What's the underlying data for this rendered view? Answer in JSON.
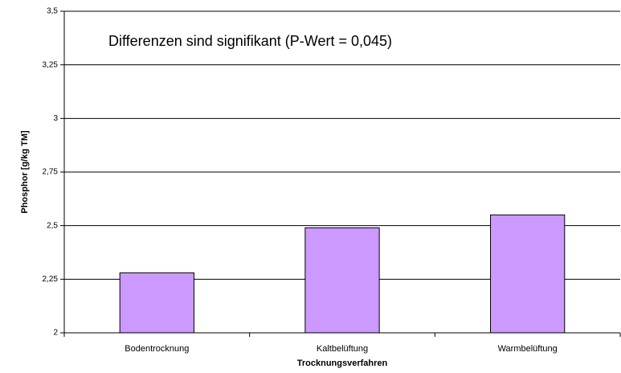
{
  "chart_data": {
    "type": "bar",
    "annotation": "Differenzen sind signifikant (P-Wert = 0,045)",
    "x_label": "Trocknungsverfahren",
    "y_label": "Phosphor [g/kg TM]",
    "categories": [
      "Bodentrocknung",
      "Kaltbelüftung",
      "Warmbelüftung"
    ],
    "values": [
      2.28,
      2.49,
      2.55
    ],
    "color": "#cc99ff",
    "ylim": [
      2,
      3.5
    ],
    "yticks": [
      2,
      {
        "value": 2.25,
        "label": "2,25"
      },
      {
        "value": 2.5,
        "label": "2,5"
      },
      {
        "value": 2.75,
        "label": "2,75"
      },
      3,
      {
        "value": 3.25,
        "label": "3,25"
      },
      {
        "value": 3.5,
        "label": "3,5"
      }
    ],
    "grid": true
  }
}
